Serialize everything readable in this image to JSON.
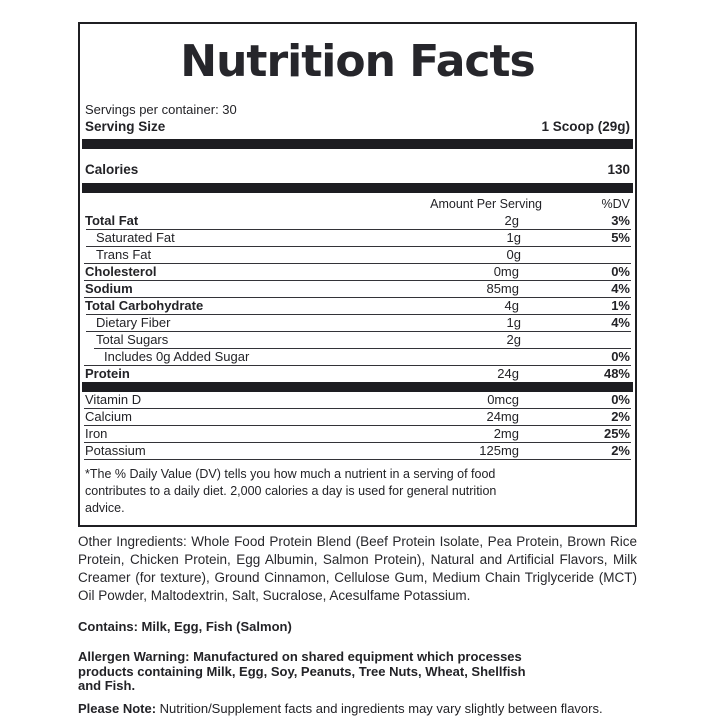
{
  "label": {
    "title": "Nutrition Facts",
    "servings_per_container": "Servings per container: 30",
    "serving_size_label": "Serving Size",
    "serving_size_value": "1 Scoop (29g)",
    "calories_label": "Calories",
    "calories_value": "130",
    "col_amount": "Amount Per Serving",
    "col_dv": "%DV",
    "rows": [
      {
        "name": "Total Fat",
        "amount": "2g",
        "dv": "3%"
      },
      {
        "name": "Saturated Fat",
        "amount": "1g",
        "dv": "5%"
      },
      {
        "name": "Trans Fat",
        "amount": "0g",
        "dv": ""
      },
      {
        "name": "Cholesterol",
        "amount": "0mg",
        "dv": "0%"
      },
      {
        "name": "Sodium",
        "amount": "85mg",
        "dv": "4%"
      },
      {
        "name": "Total Carbohydrate",
        "amount": "4g",
        "dv": "1%"
      },
      {
        "name": "Dietary Fiber",
        "amount": "1g",
        "dv": "4%"
      },
      {
        "name": "Total Sugars",
        "amount": "2g",
        "dv": ""
      },
      {
        "name": "Includes 0g Added Sugar",
        "amount": "",
        "dv": "0%"
      },
      {
        "name": "Protein",
        "amount": "24g",
        "dv": "48%"
      }
    ],
    "micronutrients": [
      {
        "name": "Vitamin D",
        "amount": "0mcg",
        "dv": "0%"
      },
      {
        "name": "Calcium",
        "amount": "24mg",
        "dv": "2%"
      },
      {
        "name": "Iron",
        "amount": "2mg",
        "dv": "25%"
      },
      {
        "name": "Potassium",
        "amount": "125mg",
        "dv": "2%"
      }
    ],
    "footnote_lines": [
      "*The % Daily Value (DV) tells you how much a nutrient in a serving of food",
      "contributes to a daily diet. 2,000 calories a day is used for general nutrition",
      "advice."
    ]
  },
  "below": {
    "other_ingredients": "Other Ingredients: Whole Food Protein Blend (Beef Protein Isolate, Pea Protein, Brown Rice Protein, Chicken Protein, Egg Albumin, Salmon Protein), Natural and Artificial Flavors, Milk Creamer (for texture), Ground Cinnamon, Cellulose Gum, Medium Chain Triglyceride (MCT) Oil Powder, Maltodextrin, Salt, Sucralose, Acesulfame Potassium.",
    "contains": "Contains: Milk, Egg, Fish (Salmon)",
    "allergen_lines": [
      "Allergen Warning: Manufactured on shared equipment which processes",
      "products containing Milk, Egg, Soy, Peanuts, Tree Nuts, Wheat, Shellfish",
      "and Fish."
    ],
    "please_note_label": "Please Note:",
    "please_note_text": " Nutrition/Supplement facts and ingredients may vary slightly between flavors."
  }
}
